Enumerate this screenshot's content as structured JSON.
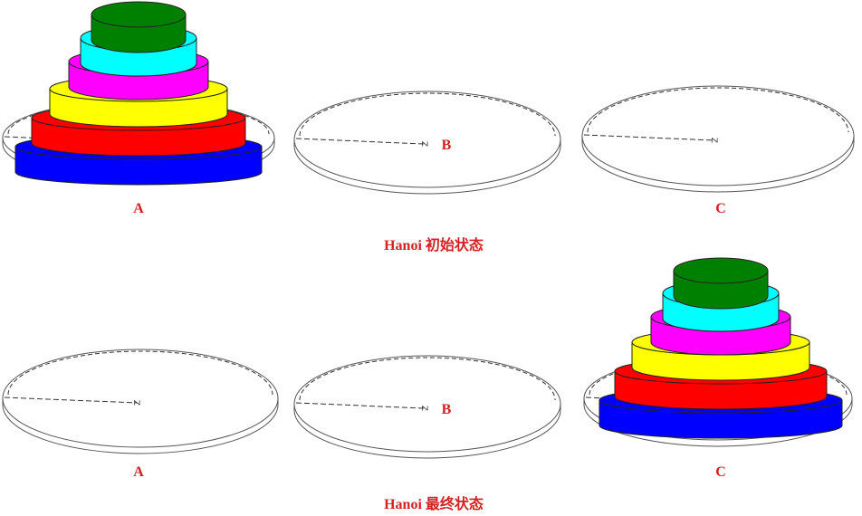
{
  "colors": {
    "label": "#d42121",
    "disks": [
      "#0000ff",
      "#ff0000",
      "#ffff00",
      "#ff00ff",
      "#00ffff",
      "#008000"
    ]
  },
  "initial_state": {
    "caption": "Hanoi 初始状态",
    "pegs": [
      {
        "label": "A",
        "peg_mark": "Z",
        "disk_count": 6
      },
      {
        "label": "B",
        "peg_mark": "Z",
        "disk_count": 0
      },
      {
        "label": "C",
        "peg_mark": "Z",
        "disk_count": 0
      }
    ]
  },
  "final_state": {
    "caption": "Hanoi 最终状态",
    "pegs": [
      {
        "label": "A",
        "peg_mark": "Z",
        "disk_count": 0
      },
      {
        "label": "B",
        "peg_mark": "Z",
        "disk_count": 0
      },
      {
        "label": "C",
        "peg_mark": "Z",
        "disk_count": 6
      }
    ]
  }
}
